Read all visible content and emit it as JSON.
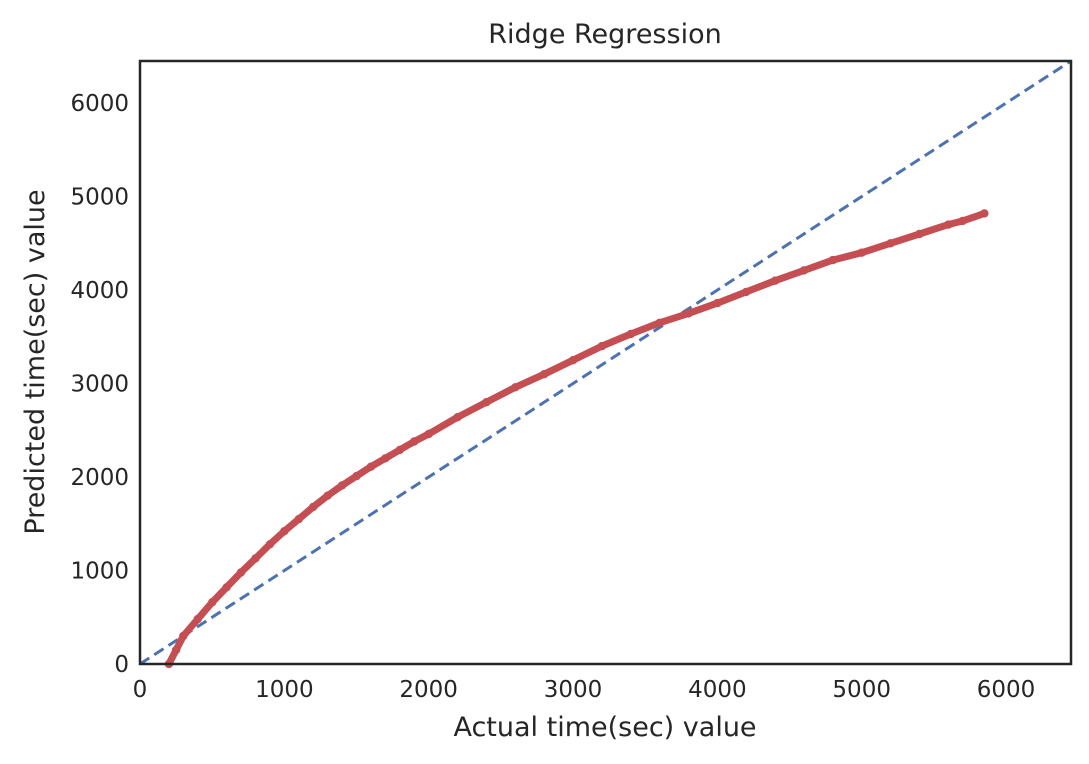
{
  "chart_data": {
    "type": "scatter",
    "title": "Ridge Regression",
    "xlabel": "Actual time(sec) value",
    "ylabel": "Predicted time(sec) value",
    "xlim": [
      0,
      6450
    ],
    "ylim": [
      0,
      6450
    ],
    "xticks": [
      "0",
      "1000",
      "2000",
      "3000",
      "4000",
      "5000",
      "6000"
    ],
    "yticks": [
      "0",
      "1000",
      "2000",
      "3000",
      "4000",
      "5000",
      "6000"
    ],
    "grid": false,
    "legend": "none",
    "colors": {
      "predictions": "#c44e52",
      "reference": "#4c72b0"
    },
    "series": [
      {
        "kind": "reference-line",
        "style": "dashed",
        "x": [
          0,
          6450
        ],
        "y": [
          0,
          6450
        ]
      },
      {
        "kind": "points",
        "x": [
          200,
          250,
          300,
          400,
          500,
          600,
          700,
          800,
          900,
          1000,
          1100,
          1200,
          1300,
          1400,
          1500,
          1600,
          1700,
          1800,
          1900,
          2000,
          2200,
          2400,
          2600,
          2800,
          3000,
          3200,
          3400,
          3600,
          3800,
          4000,
          4200,
          4400,
          4600,
          4800,
          5000,
          5200,
          5400,
          5600,
          5700,
          5850
        ],
        "y": [
          0,
          150,
          300,
          480,
          660,
          820,
          980,
          1130,
          1280,
          1420,
          1550,
          1680,
          1800,
          1910,
          2010,
          2110,
          2200,
          2290,
          2380,
          2460,
          2640,
          2800,
          2960,
          3100,
          3250,
          3400,
          3530,
          3650,
          3750,
          3860,
          3980,
          4100,
          4210,
          4320,
          4400,
          4500,
          4600,
          4700,
          4740,
          4820
        ]
      }
    ]
  }
}
